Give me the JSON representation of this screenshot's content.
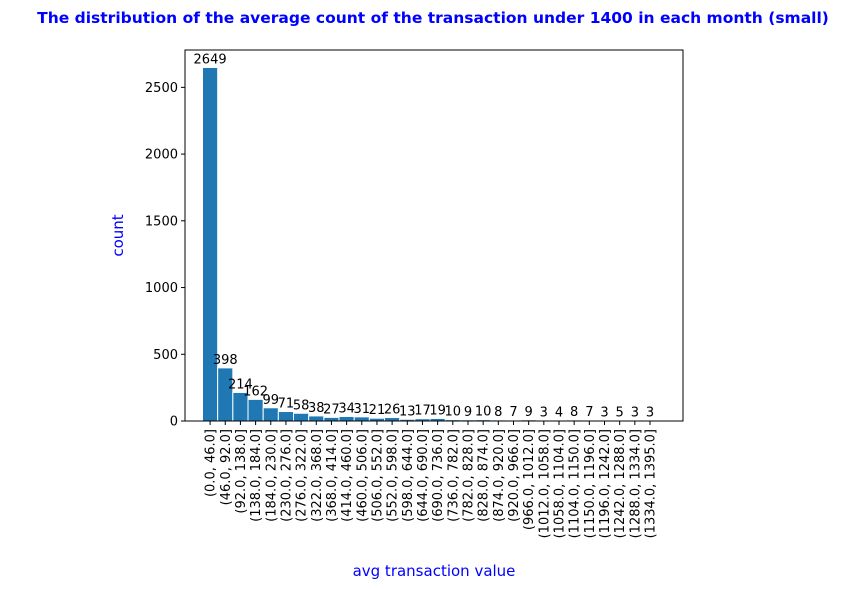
{
  "chart_data": {
    "type": "bar",
    "title": "The distribution of the average count of the transaction under 1400 in each month (small)",
    "xlabel": "avg transaction value",
    "ylabel": "count",
    "ylim": [
      0,
      2780
    ],
    "yticks": [
      0,
      500,
      1000,
      1500,
      2000,
      2500
    ],
    "categories": [
      "(0.0, 46.0]",
      "(46.0, 92.0]",
      "(92.0, 138.0]",
      "(138.0, 184.0]",
      "(184.0, 230.0]",
      "(230.0, 276.0]",
      "(276.0, 322.0]",
      "(322.0, 368.0]",
      "(368.0, 414.0]",
      "(414.0, 460.0]",
      "(460.0, 506.0]",
      "(506.0, 552.0]",
      "(552.0, 598.0]",
      "(598.0, 644.0]",
      "(644.0, 690.0]",
      "(690.0, 736.0]",
      "(736.0, 782.0]",
      "(782.0, 828.0]",
      "(828.0, 874.0]",
      "(874.0, 920.0]",
      "(920.0, 966.0]",
      "(966.0, 1012.0]",
      "(1012.0, 1058.0]",
      "(1058.0, 1104.0]",
      "(1104.0, 1150.0]",
      "(1150.0, 1196.0]",
      "(1196.0, 1242.0]",
      "(1242.0, 1288.0]",
      "(1288.0, 1334.0]",
      "(1334.0, 1395.0]"
    ],
    "values": [
      2649,
      398,
      214,
      162,
      99,
      71,
      58,
      38,
      27,
      34,
      31,
      21,
      26,
      13,
      17,
      19,
      10,
      9,
      10,
      8,
      7,
      9,
      3,
      4,
      8,
      7,
      3,
      5,
      3,
      3
    ],
    "grid": false,
    "colors": {
      "bar": "#1f77b4",
      "bar_edge": "#ffffff",
      "title": "#0000ff",
      "axis_label": "#0000ff"
    }
  }
}
